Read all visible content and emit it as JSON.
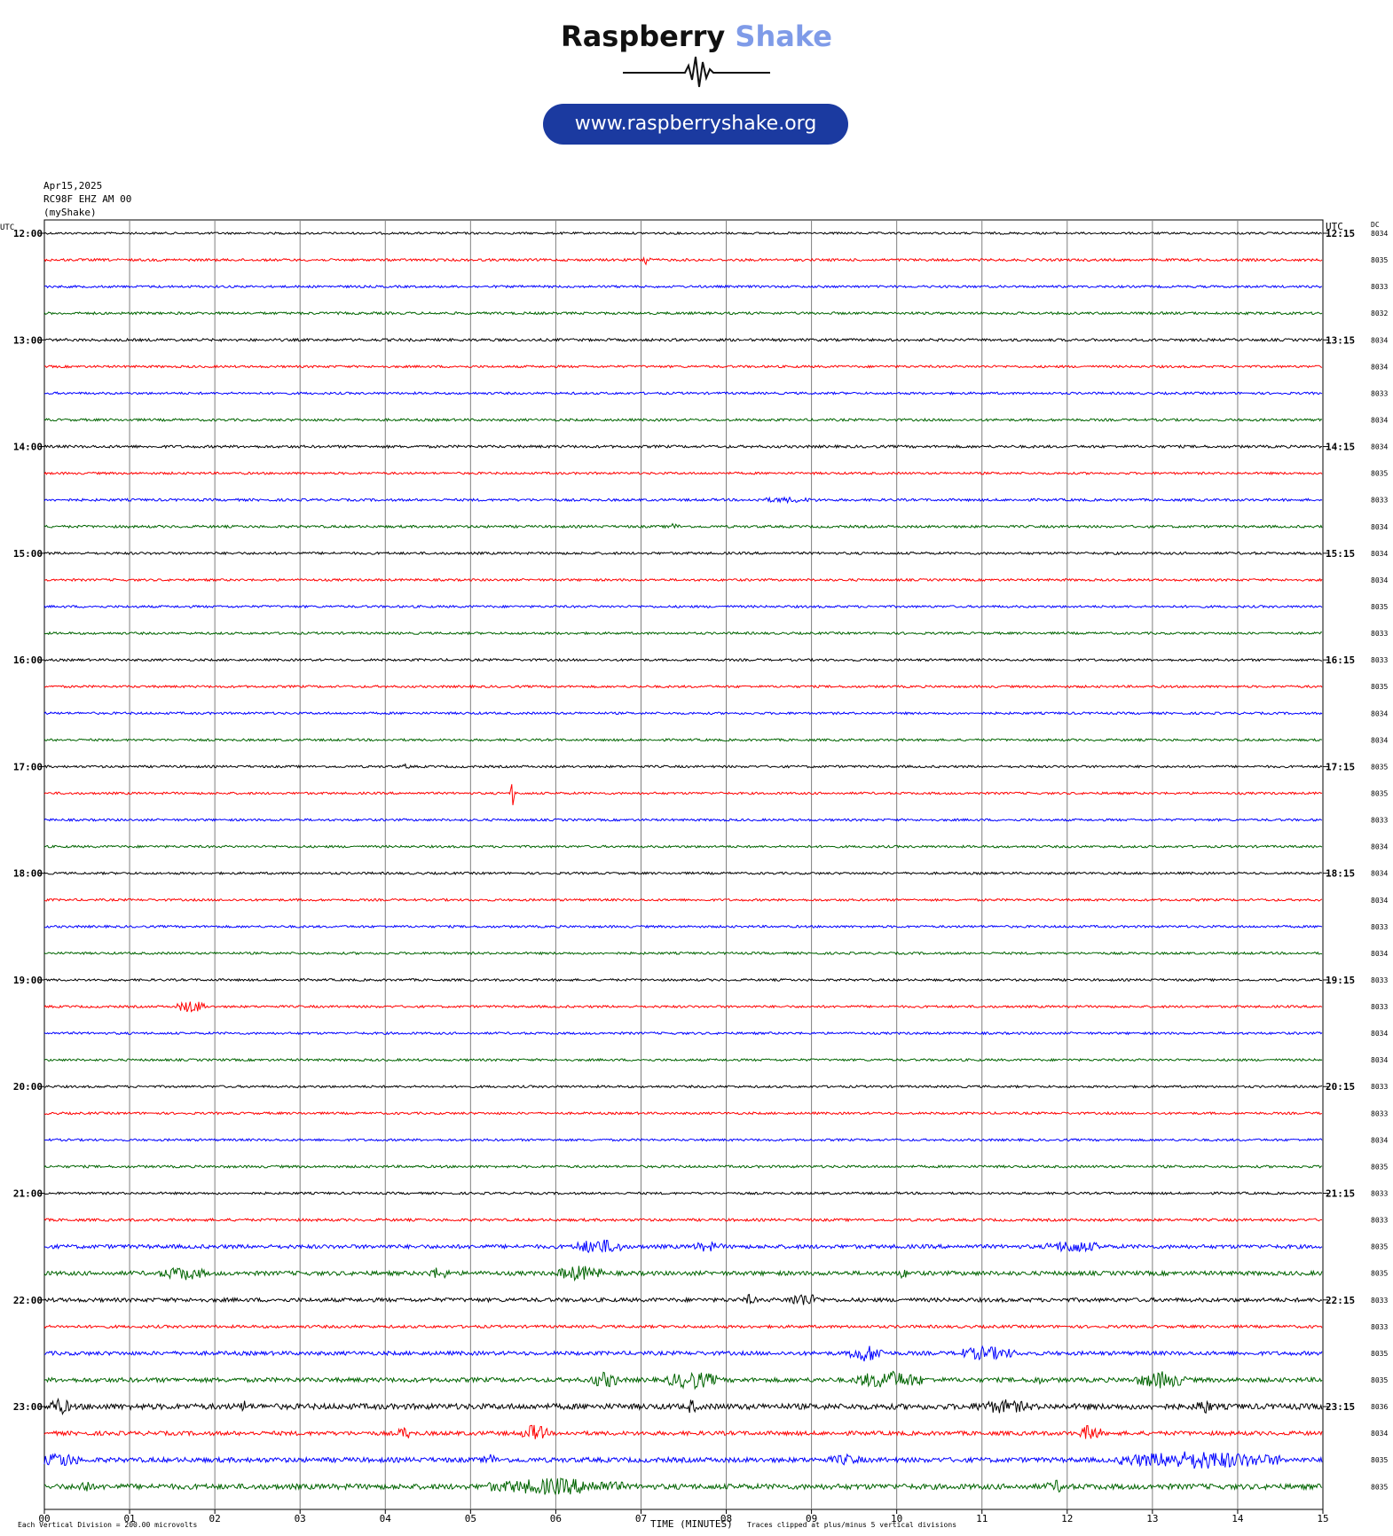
{
  "logo": {
    "word1": "Raspberry",
    "word2": "Shake",
    "url": "www.raspberryshake.org"
  },
  "header": {
    "date": "Apr15,2025",
    "station": "RC98F EHZ AM 00",
    "network": "(myShake)"
  },
  "axes": {
    "left_unit": "UTC",
    "right_unit": "UTC",
    "dc_label": "DC",
    "xlabel": "TIME (MINUTES)"
  },
  "footer": {
    "division_note": "Each Vertical Division =  200.00 microvolts",
    "clip_note": "Traces clipped at plus/minus 5 vertical divisions"
  },
  "colors": {
    "trace_cycle": [
      "#000000",
      "#ff0000",
      "#0000ff",
      "#006400"
    ],
    "grid": "#808080",
    "logo_accent": "#7f9be8",
    "url_pill": "#1b3aa0"
  },
  "chart_data": {
    "type": "line",
    "title": "",
    "x_ticks": [
      "00",
      "01",
      "02",
      "03",
      "04",
      "05",
      "06",
      "07",
      "08",
      "09",
      "10",
      "11",
      "12",
      "13",
      "14",
      "15"
    ],
    "xlim": [
      0,
      15
    ],
    "left_hour_labels": [
      "12:00",
      "13:00",
      "14:00",
      "15:00",
      "16:00",
      "17:00",
      "18:00",
      "19:00",
      "20:00",
      "21:00",
      "22:00",
      "23:00"
    ],
    "right_hour_labels": [
      "12:15",
      "13:15",
      "14:15",
      "15:15",
      "16:15",
      "17:15",
      "18:15",
      "19:15",
      "20:15",
      "21:15",
      "22:15",
      "23:15"
    ],
    "dc_values": [
      "8034",
      "8035",
      "8033",
      "8032",
      "8034",
      "8034",
      "8033",
      "8034",
      "8034",
      "8035",
      "8033",
      "8034",
      "8034",
      "8034",
      "8035",
      "8033",
      "8033",
      "8035",
      "8034",
      "8034",
      "8035",
      "8035",
      "8033",
      "8034",
      "8034",
      "8034",
      "8033",
      "8034",
      "8033",
      "8033",
      "8034",
      "8034",
      "8033",
      "8033",
      "8034",
      "8035",
      "8033",
      "8033",
      "8035",
      "8035",
      "8033",
      "8033",
      "8035",
      "8035",
      "8036",
      "8034",
      "8035",
      "8035"
    ],
    "trace_count": 48,
    "noise_level": [
      1.2,
      1.4,
      1.3,
      1.4,
      1.5,
      1.3,
      1.3,
      1.4,
      1.5,
      1.3,
      1.4,
      1.4,
      1.4,
      1.3,
      1.3,
      1.3,
      1.3,
      1.3,
      1.3,
      1.3,
      1.3,
      1.3,
      1.3,
      1.3,
      1.3,
      1.3,
      1.3,
      1.3,
      1.3,
      1.3,
      1.3,
      1.3,
      1.3,
      1.3,
      1.3,
      1.4,
      1.3,
      1.5,
      2.2,
      2.4,
      2.2,
      1.6,
      2.2,
      2.5,
      3.2,
      2.3,
      2.7,
      3.0
    ],
    "events": [
      {
        "trace": 1,
        "start_min": 7.02,
        "end_min": 7.12,
        "amplitude_div": 2.0
      },
      {
        "trace": 10,
        "start_min": 8.3,
        "end_min": 9.1,
        "amplitude_div": 0.8
      },
      {
        "trace": 11,
        "start_min": 7.3,
        "end_min": 7.45,
        "amplitude_div": 1.0
      },
      {
        "trace": 20,
        "start_min": 4.2,
        "end_min": 4.3,
        "amplitude_div": 0.8
      },
      {
        "trace": 21,
        "start_min": 5.47,
        "end_min": 5.53,
        "amplitude_div": 4.0
      },
      {
        "trace": 29,
        "start_min": 1.55,
        "end_min": 1.9,
        "amplitude_div": 1.8
      },
      {
        "trace": 38,
        "start_min": 6.2,
        "end_min": 6.8,
        "amplitude_div": 2.2
      },
      {
        "trace": 38,
        "start_min": 7.6,
        "end_min": 7.95,
        "amplitude_div": 1.5
      },
      {
        "trace": 38,
        "start_min": 11.75,
        "end_min": 12.4,
        "amplitude_div": 1.8
      },
      {
        "trace": 39,
        "start_min": 1.35,
        "end_min": 1.9,
        "amplitude_div": 2.0
      },
      {
        "trace": 39,
        "start_min": 4.5,
        "end_min": 4.75,
        "amplitude_div": 1.8
      },
      {
        "trace": 39,
        "start_min": 6.0,
        "end_min": 6.55,
        "amplitude_div": 2.2
      },
      {
        "trace": 39,
        "start_min": 10.0,
        "end_min": 10.15,
        "amplitude_div": 1.5
      },
      {
        "trace": 40,
        "start_min": 8.2,
        "end_min": 8.35,
        "amplitude_div": 1.6
      },
      {
        "trace": 40,
        "start_min": 8.7,
        "end_min": 9.1,
        "amplitude_div": 2.0
      },
      {
        "trace": 42,
        "start_min": 9.45,
        "end_min": 9.85,
        "amplitude_div": 2.5
      },
      {
        "trace": 42,
        "start_min": 10.7,
        "end_min": 11.4,
        "amplitude_div": 2.0
      },
      {
        "trace": 43,
        "start_min": 6.4,
        "end_min": 6.75,
        "amplitude_div": 2.3
      },
      {
        "trace": 43,
        "start_min": 7.3,
        "end_min": 7.9,
        "amplitude_div": 2.6
      },
      {
        "trace": 43,
        "start_min": 9.5,
        "end_min": 10.3,
        "amplitude_div": 2.6
      },
      {
        "trace": 43,
        "start_min": 11.6,
        "end_min": 11.7,
        "amplitude_div": 1.6
      },
      {
        "trace": 43,
        "start_min": 12.8,
        "end_min": 13.4,
        "amplitude_div": 2.4
      },
      {
        "trace": 44,
        "start_min": 0.05,
        "end_min": 0.3,
        "amplitude_div": 2.5
      },
      {
        "trace": 44,
        "start_min": 2.3,
        "end_min": 2.4,
        "amplitude_div": 2.0
      },
      {
        "trace": 44,
        "start_min": 7.55,
        "end_min": 7.65,
        "amplitude_div": 2.5
      },
      {
        "trace": 44,
        "start_min": 10.9,
        "end_min": 11.6,
        "amplitude_div": 2.0
      },
      {
        "trace": 44,
        "start_min": 13.5,
        "end_min": 13.7,
        "amplitude_div": 2.3
      },
      {
        "trace": 45,
        "start_min": 4.15,
        "end_min": 4.3,
        "amplitude_div": 2.0
      },
      {
        "trace": 45,
        "start_min": 5.6,
        "end_min": 5.9,
        "amplitude_div": 2.5
      },
      {
        "trace": 45,
        "start_min": 12.15,
        "end_min": 12.4,
        "amplitude_div": 2.5
      },
      {
        "trace": 46,
        "start_min": 0.0,
        "end_min": 0.4,
        "amplitude_div": 2.2
      },
      {
        "trace": 46,
        "start_min": 5.15,
        "end_min": 5.3,
        "amplitude_div": 2.0
      },
      {
        "trace": 46,
        "start_min": 9.2,
        "end_min": 9.6,
        "amplitude_div": 1.6
      },
      {
        "trace": 46,
        "start_min": 12.6,
        "end_min": 14.5,
        "amplitude_div": 2.6
      },
      {
        "trace": 47,
        "start_min": 0.4,
        "end_min": 0.55,
        "amplitude_div": 2.2
      },
      {
        "trace": 47,
        "start_min": 5.2,
        "end_min": 6.8,
        "amplitude_div": 2.4
      },
      {
        "trace": 47,
        "start_min": 11.75,
        "end_min": 12.0,
        "amplitude_div": 1.8
      }
    ]
  }
}
